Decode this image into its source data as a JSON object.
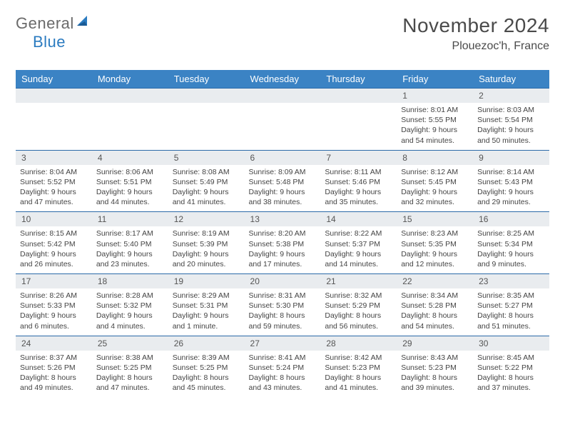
{
  "logo": {
    "text1": "General",
    "text2": "Blue"
  },
  "title": "November 2024",
  "location": "Plouezoc'h, France",
  "header_bg": "#3b83c4",
  "day_labels": [
    "Sunday",
    "Monday",
    "Tuesday",
    "Wednesday",
    "Thursday",
    "Friday",
    "Saturday"
  ],
  "weeks": [
    [
      null,
      null,
      null,
      null,
      null,
      {
        "n": "1",
        "sr": "Sunrise: 8:01 AM",
        "ss": "Sunset: 5:55 PM",
        "d1": "Daylight: 9 hours",
        "d2": "and 54 minutes."
      },
      {
        "n": "2",
        "sr": "Sunrise: 8:03 AM",
        "ss": "Sunset: 5:54 PM",
        "d1": "Daylight: 9 hours",
        "d2": "and 50 minutes."
      }
    ],
    [
      {
        "n": "3",
        "sr": "Sunrise: 8:04 AM",
        "ss": "Sunset: 5:52 PM",
        "d1": "Daylight: 9 hours",
        "d2": "and 47 minutes."
      },
      {
        "n": "4",
        "sr": "Sunrise: 8:06 AM",
        "ss": "Sunset: 5:51 PM",
        "d1": "Daylight: 9 hours",
        "d2": "and 44 minutes."
      },
      {
        "n": "5",
        "sr": "Sunrise: 8:08 AM",
        "ss": "Sunset: 5:49 PM",
        "d1": "Daylight: 9 hours",
        "d2": "and 41 minutes."
      },
      {
        "n": "6",
        "sr": "Sunrise: 8:09 AM",
        "ss": "Sunset: 5:48 PM",
        "d1": "Daylight: 9 hours",
        "d2": "and 38 minutes."
      },
      {
        "n": "7",
        "sr": "Sunrise: 8:11 AM",
        "ss": "Sunset: 5:46 PM",
        "d1": "Daylight: 9 hours",
        "d2": "and 35 minutes."
      },
      {
        "n": "8",
        "sr": "Sunrise: 8:12 AM",
        "ss": "Sunset: 5:45 PM",
        "d1": "Daylight: 9 hours",
        "d2": "and 32 minutes."
      },
      {
        "n": "9",
        "sr": "Sunrise: 8:14 AM",
        "ss": "Sunset: 5:43 PM",
        "d1": "Daylight: 9 hours",
        "d2": "and 29 minutes."
      }
    ],
    [
      {
        "n": "10",
        "sr": "Sunrise: 8:15 AM",
        "ss": "Sunset: 5:42 PM",
        "d1": "Daylight: 9 hours",
        "d2": "and 26 minutes."
      },
      {
        "n": "11",
        "sr": "Sunrise: 8:17 AM",
        "ss": "Sunset: 5:40 PM",
        "d1": "Daylight: 9 hours",
        "d2": "and 23 minutes."
      },
      {
        "n": "12",
        "sr": "Sunrise: 8:19 AM",
        "ss": "Sunset: 5:39 PM",
        "d1": "Daylight: 9 hours",
        "d2": "and 20 minutes."
      },
      {
        "n": "13",
        "sr": "Sunrise: 8:20 AM",
        "ss": "Sunset: 5:38 PM",
        "d1": "Daylight: 9 hours",
        "d2": "and 17 minutes."
      },
      {
        "n": "14",
        "sr": "Sunrise: 8:22 AM",
        "ss": "Sunset: 5:37 PM",
        "d1": "Daylight: 9 hours",
        "d2": "and 14 minutes."
      },
      {
        "n": "15",
        "sr": "Sunrise: 8:23 AM",
        "ss": "Sunset: 5:35 PM",
        "d1": "Daylight: 9 hours",
        "d2": "and 12 minutes."
      },
      {
        "n": "16",
        "sr": "Sunrise: 8:25 AM",
        "ss": "Sunset: 5:34 PM",
        "d1": "Daylight: 9 hours",
        "d2": "and 9 minutes."
      }
    ],
    [
      {
        "n": "17",
        "sr": "Sunrise: 8:26 AM",
        "ss": "Sunset: 5:33 PM",
        "d1": "Daylight: 9 hours",
        "d2": "and 6 minutes."
      },
      {
        "n": "18",
        "sr": "Sunrise: 8:28 AM",
        "ss": "Sunset: 5:32 PM",
        "d1": "Daylight: 9 hours",
        "d2": "and 4 minutes."
      },
      {
        "n": "19",
        "sr": "Sunrise: 8:29 AM",
        "ss": "Sunset: 5:31 PM",
        "d1": "Daylight: 9 hours",
        "d2": "and 1 minute."
      },
      {
        "n": "20",
        "sr": "Sunrise: 8:31 AM",
        "ss": "Sunset: 5:30 PM",
        "d1": "Daylight: 8 hours",
        "d2": "and 59 minutes."
      },
      {
        "n": "21",
        "sr": "Sunrise: 8:32 AM",
        "ss": "Sunset: 5:29 PM",
        "d1": "Daylight: 8 hours",
        "d2": "and 56 minutes."
      },
      {
        "n": "22",
        "sr": "Sunrise: 8:34 AM",
        "ss": "Sunset: 5:28 PM",
        "d1": "Daylight: 8 hours",
        "d2": "and 54 minutes."
      },
      {
        "n": "23",
        "sr": "Sunrise: 8:35 AM",
        "ss": "Sunset: 5:27 PM",
        "d1": "Daylight: 8 hours",
        "d2": "and 51 minutes."
      }
    ],
    [
      {
        "n": "24",
        "sr": "Sunrise: 8:37 AM",
        "ss": "Sunset: 5:26 PM",
        "d1": "Daylight: 8 hours",
        "d2": "and 49 minutes."
      },
      {
        "n": "25",
        "sr": "Sunrise: 8:38 AM",
        "ss": "Sunset: 5:25 PM",
        "d1": "Daylight: 8 hours",
        "d2": "and 47 minutes."
      },
      {
        "n": "26",
        "sr": "Sunrise: 8:39 AM",
        "ss": "Sunset: 5:25 PM",
        "d1": "Daylight: 8 hours",
        "d2": "and 45 minutes."
      },
      {
        "n": "27",
        "sr": "Sunrise: 8:41 AM",
        "ss": "Sunset: 5:24 PM",
        "d1": "Daylight: 8 hours",
        "d2": "and 43 minutes."
      },
      {
        "n": "28",
        "sr": "Sunrise: 8:42 AM",
        "ss": "Sunset: 5:23 PM",
        "d1": "Daylight: 8 hours",
        "d2": "and 41 minutes."
      },
      {
        "n": "29",
        "sr": "Sunrise: 8:43 AM",
        "ss": "Sunset: 5:23 PM",
        "d1": "Daylight: 8 hours",
        "d2": "and 39 minutes."
      },
      {
        "n": "30",
        "sr": "Sunrise: 8:45 AM",
        "ss": "Sunset: 5:22 PM",
        "d1": "Daylight: 8 hours",
        "d2": "and 37 minutes."
      }
    ]
  ]
}
